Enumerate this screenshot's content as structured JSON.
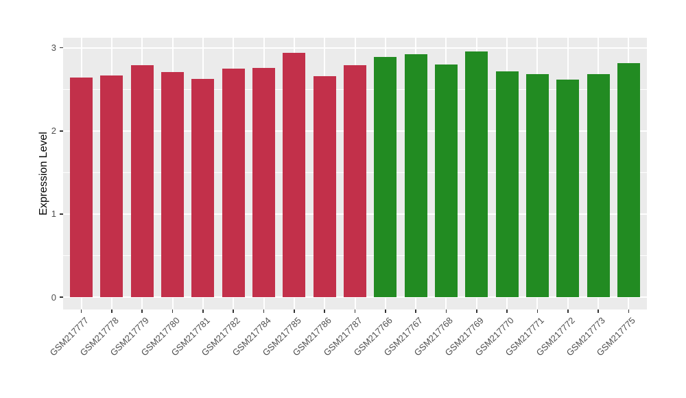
{
  "chart_data": {
    "type": "bar",
    "title": "",
    "xlabel": "",
    "ylabel": "Expression Level",
    "ylim": [
      0,
      3.12
    ],
    "yticks": [
      0,
      1,
      2,
      3
    ],
    "yticks_minor": [
      0.5,
      1.5,
      2.5
    ],
    "grid": true,
    "legend": false,
    "categories": [
      "GSM217777",
      "GSM217778",
      "GSM217779",
      "GSM217780",
      "GSM217781",
      "GSM217782",
      "GSM217784",
      "GSM217785",
      "GSM217786",
      "GSM217787",
      "GSM217766",
      "GSM217767",
      "GSM217768",
      "GSM217769",
      "GSM217770",
      "GSM217771",
      "GSM217772",
      "GSM217773",
      "GSM217775"
    ],
    "values": [
      2.64,
      2.67,
      2.79,
      2.71,
      2.63,
      2.75,
      2.76,
      2.94,
      2.66,
      2.79,
      2.89,
      2.92,
      2.8,
      2.96,
      2.72,
      2.68,
      2.62,
      2.68,
      2.82
    ],
    "bar_groups": [
      "A",
      "A",
      "A",
      "A",
      "A",
      "A",
      "A",
      "A",
      "A",
      "A",
      "B",
      "B",
      "B",
      "B",
      "B",
      "B",
      "B",
      "B",
      "B"
    ],
    "group_colors": {
      "A": "#C2304A",
      "B": "#228B22"
    }
  },
  "colors": {
    "panel_background": "#EBEBEB",
    "gridline": "#FFFFFF",
    "tick_mark": "#333333",
    "axis_text": "#4D4D4D",
    "axis_title": "#000000",
    "figure_background": "#FFFFFF"
  }
}
